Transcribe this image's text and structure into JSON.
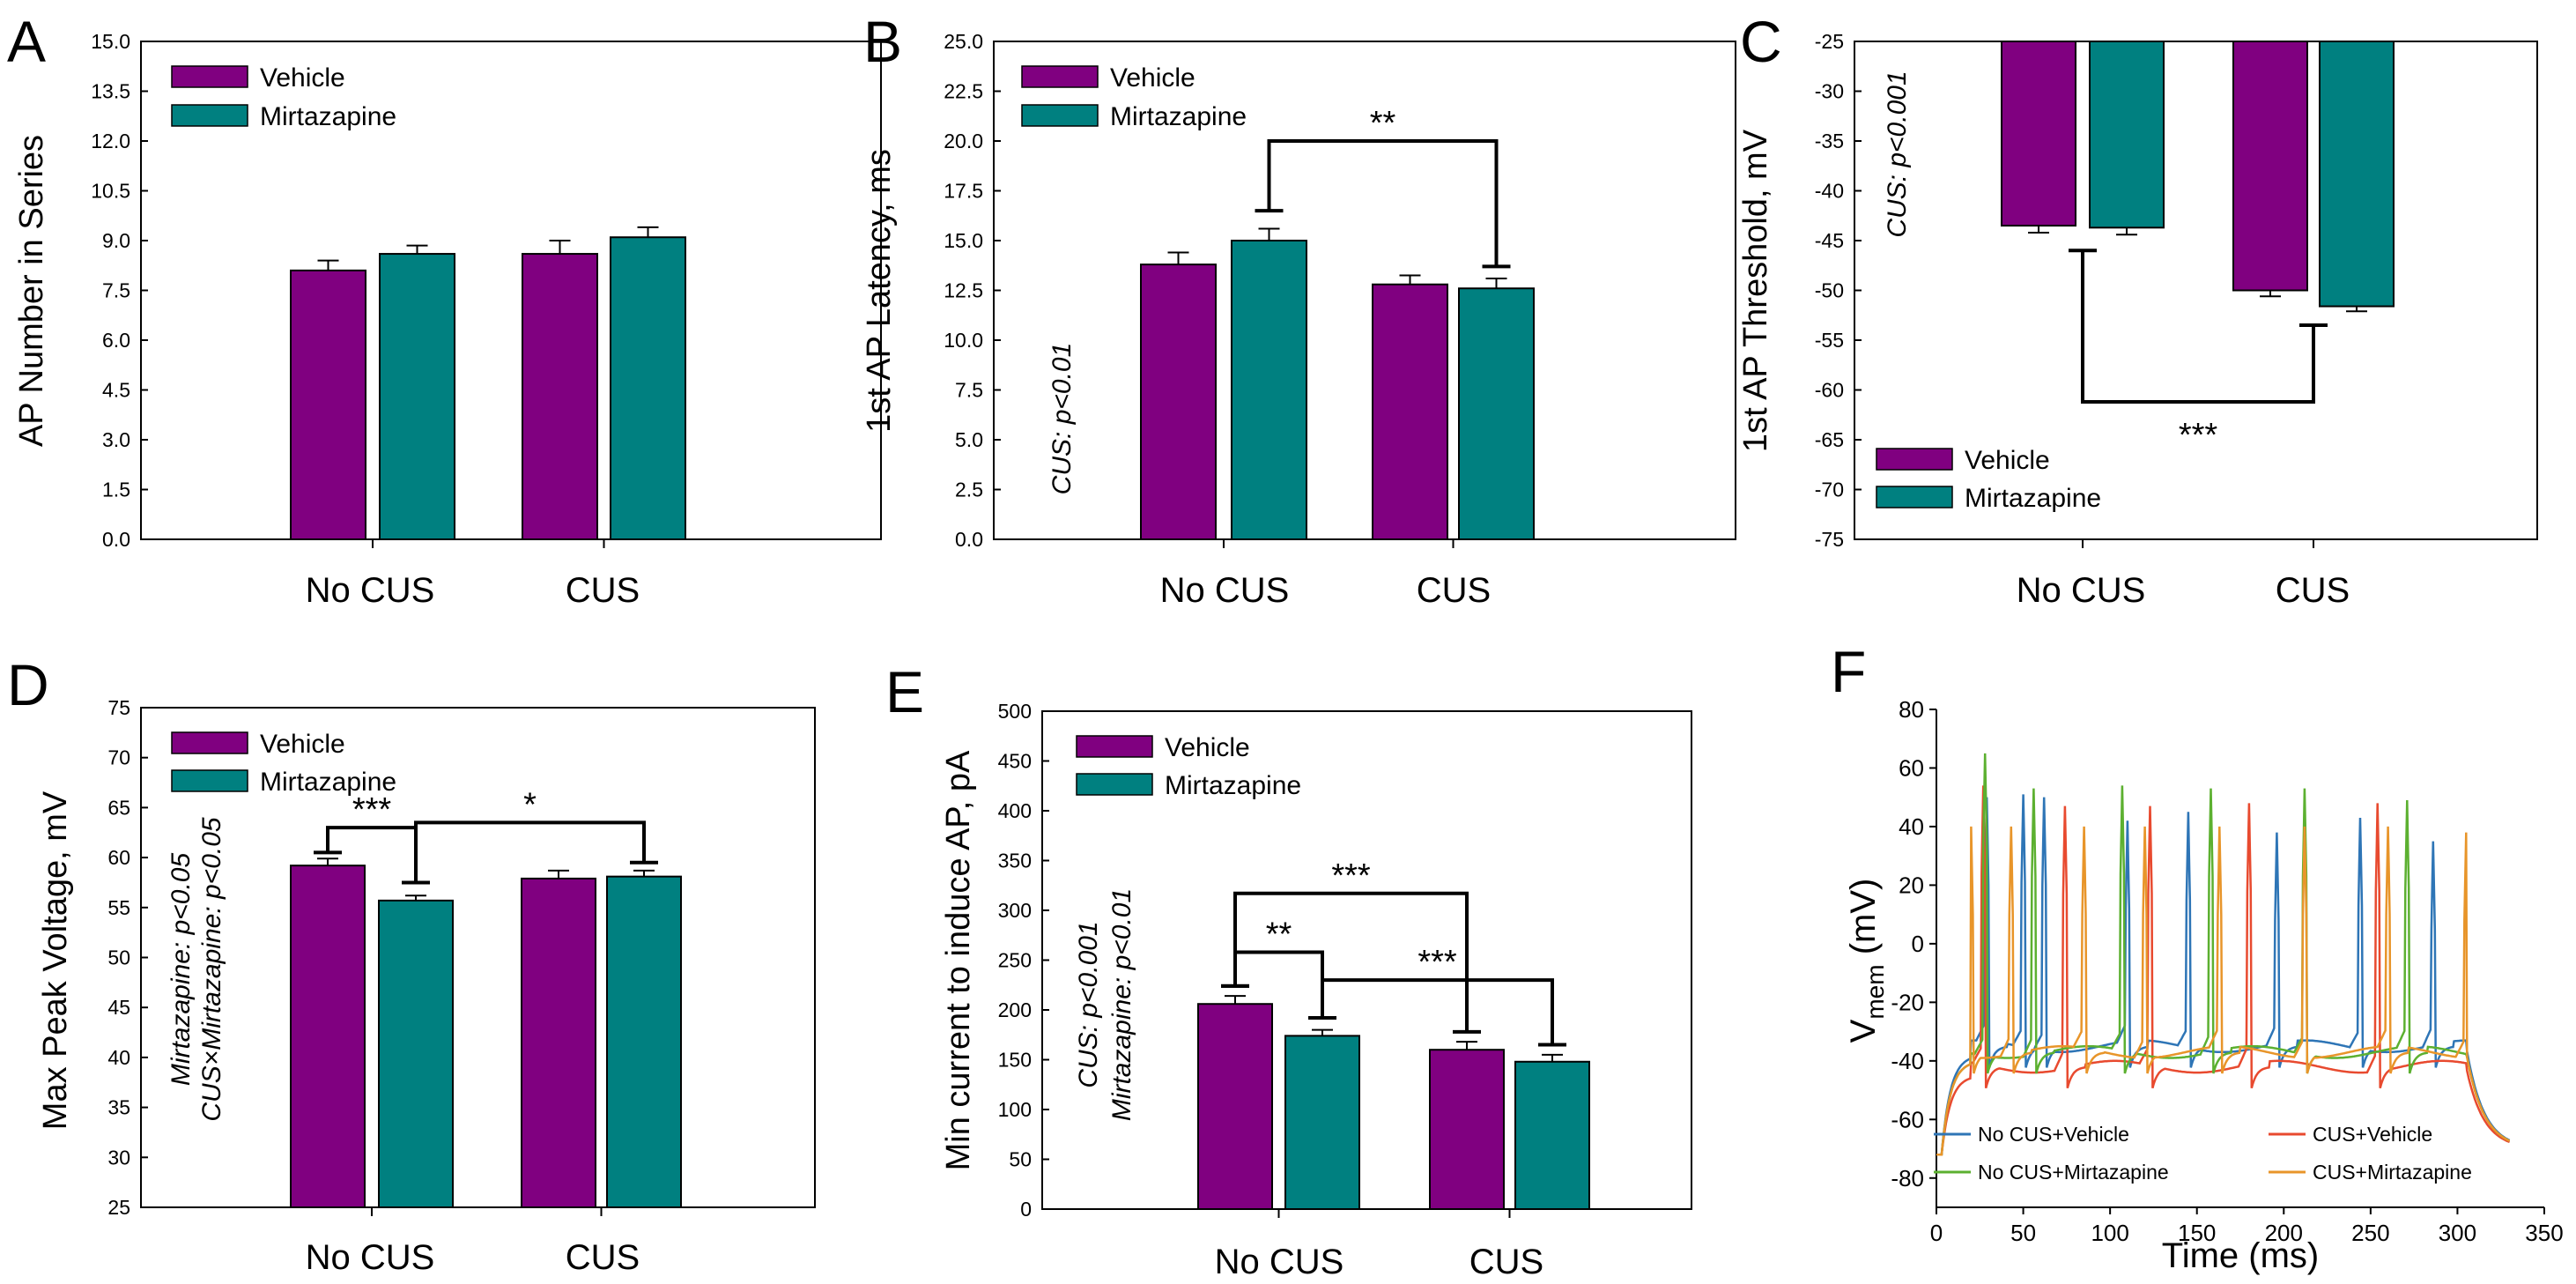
{
  "figure": {
    "colors": {
      "vehicle": "#800080",
      "mirtazapine": "#008080",
      "axis": "#000000"
    },
    "legend": [
      "Vehicle",
      "Mirtazapine"
    ]
  },
  "chart_data": [
    {
      "panel": "A",
      "type": "bar",
      "ylabel": "AP Number in Series",
      "ylim": [
        0,
        15
      ],
      "yticks": [
        "0.0",
        "1.5",
        "3.0",
        "4.5",
        "6.0",
        "7.5",
        "9.0",
        "10.5",
        "12.0",
        "13.5",
        "15.0"
      ],
      "categories": [
        "No CUS",
        "CUS"
      ],
      "series": [
        {
          "name": "Vehicle",
          "values": [
            8.1,
            8.6
          ],
          "errors": [
            0.3,
            0.4
          ]
        },
        {
          "name": "Mirtazapine",
          "values": [
            8.6,
            9.1
          ],
          "errors": [
            0.25,
            0.3
          ]
        }
      ],
      "legend_position": "top-left",
      "annotations": [],
      "significance": []
    },
    {
      "panel": "B",
      "type": "bar",
      "ylabel": "1st AP Latency, ms",
      "ylim": [
        0,
        25
      ],
      "yticks": [
        "0.0",
        "2.5",
        "5.0",
        "7.5",
        "10.0",
        "12.5",
        "15.0",
        "17.5",
        "20.0",
        "22.5",
        "25.0"
      ],
      "categories": [
        "No CUS",
        "CUS"
      ],
      "series": [
        {
          "name": "Vehicle",
          "values": [
            13.8,
            12.8
          ],
          "errors": [
            0.6,
            0.45
          ]
        },
        {
          "name": "Mirtazapine",
          "values": [
            15.0,
            12.6
          ],
          "errors": [
            0.6,
            0.5
          ]
        }
      ],
      "legend_position": "top-left",
      "annotations": [
        "CUS: p<0.01"
      ],
      "significance": [
        {
          "from": [
            0,
            1
          ],
          "to": [
            1,
            1
          ],
          "y": 20.0,
          "legs": [
            16.5,
            13.7
          ],
          "label": "**"
        }
      ]
    },
    {
      "panel": "C",
      "type": "bar",
      "ylabel": "1st AP Threshold, mV",
      "ylim": [
        -75,
        -25
      ],
      "yticks": [
        "-75",
        "-70",
        "-65",
        "-60",
        "-55",
        "-50",
        "-45",
        "-40",
        "-35",
        "-30",
        "-25"
      ],
      "categories": [
        "No CUS",
        "CUS"
      ],
      "series": [
        {
          "name": "Vehicle",
          "values": [
            -43.5,
            -50.0
          ],
          "errors": [
            0.7,
            0.6
          ]
        },
        {
          "name": "Mirtazapine",
          "values": [
            -43.7,
            -51.6
          ],
          "errors": [
            0.7,
            0.5
          ]
        }
      ],
      "legend_position": "bottom-left",
      "annotations": [
        "CUS: p<0.001"
      ],
      "significance": [
        {
          "from": "No CUS",
          "to": "CUS",
          "y": -61.2,
          "legs": [
            -46.0,
            -53.5
          ],
          "label": "***"
        }
      ]
    },
    {
      "panel": "D",
      "type": "bar",
      "ylabel": "Max Peak Voltage, mV",
      "ylim": [
        25,
        75
      ],
      "yticks": [
        "25",
        "30",
        "35",
        "40",
        "45",
        "50",
        "55",
        "60",
        "65",
        "70",
        "75"
      ],
      "categories": [
        "No CUS",
        "CUS"
      ],
      "series": [
        {
          "name": "Vehicle",
          "values": [
            59.2,
            57.9
          ],
          "errors": [
            0.7,
            0.8
          ]
        },
        {
          "name": "Mirtazapine",
          "values": [
            55.7,
            58.1
          ],
          "errors": [
            0.5,
            0.6
          ]
        }
      ],
      "legend_position": "top-left",
      "annotations": [
        "Mirtazapine: p<0.05",
        "CUS×Mirtazapine: p<0.05"
      ],
      "significance": [
        {
          "from": [
            0,
            0
          ],
          "to": [
            0,
            1
          ],
          "y": 63.0,
          "legs": [
            60.5,
            57.5
          ],
          "label": "***"
        },
        {
          "from": [
            0,
            1
          ],
          "to": [
            1,
            1
          ],
          "y": 63.5,
          "legs": [
            57.5,
            59.5
          ],
          "label": "*"
        }
      ]
    },
    {
      "panel": "E",
      "type": "bar",
      "ylabel": "Min current to induce AP, pA",
      "ylim": [
        0,
        500
      ],
      "yticks": [
        "0",
        "50",
        "100",
        "150",
        "200",
        "250",
        "300",
        "350",
        "400",
        "450",
        "500"
      ],
      "categories": [
        "No CUS",
        "CUS"
      ],
      "series": [
        {
          "name": "Vehicle",
          "values": [
            206,
            160
          ],
          "errors": [
            8,
            8
          ]
        },
        {
          "name": "Mirtazapine",
          "values": [
            174,
            148
          ],
          "errors": [
            6,
            7
          ]
        }
      ],
      "legend_position": "top-left",
      "annotations": [
        "CUS: p<0.001",
        "Mirtazapine: p<0.01"
      ],
      "significance": [
        {
          "from": [
            0,
            0
          ],
          "to": [
            0,
            1
          ],
          "y": 258,
          "legs": [
            224,
            192
          ],
          "label": "**"
        },
        {
          "from": [
            0,
            0
          ],
          "to": [
            1,
            0
          ],
          "y": 317,
          "legs": [
            224,
            178
          ],
          "label": "***"
        },
        {
          "from": [
            0,
            1
          ],
          "to": [
            1,
            1
          ],
          "y": 230,
          "legs": [
            192,
            165
          ],
          "label": "***"
        }
      ]
    },
    {
      "panel": "F",
      "type": "line",
      "xlabel": "Time (ms)",
      "ylabel": "V",
      "ylabel_sub": "mem",
      "ylabel_unit": " (mV)",
      "xlim": [
        0,
        350
      ],
      "ylim": [
        -90,
        80
      ],
      "xticks": [
        "0",
        "50",
        "100",
        "150",
        "200",
        "250",
        "300",
        "350"
      ],
      "yticks": [
        "-80",
        "-60",
        "-40",
        "-20",
        "0",
        "20",
        "40",
        "60",
        "80"
      ],
      "series": [
        {
          "name": "No CUS+Vehicle",
          "color": "#2e75b6",
          "rest": -35,
          "spikes": [
            29,
            50,
            62,
            110,
            145,
            196,
            244,
            286
          ],
          "peaks": [
            50,
            51,
            50,
            42,
            45,
            38,
            43,
            35
          ]
        },
        {
          "name": "CUS+Vehicle",
          "color": "#e84a2f",
          "rest": -42,
          "spikes": [
            27,
            74,
            123,
            180,
            254
          ],
          "peaks": [
            54,
            47,
            47,
            48,
            48
          ]
        },
        {
          "name": "No CUS+Mirtazapine",
          "color": "#5cb030",
          "rest": -37,
          "spikes": [
            28,
            56,
            107,
            158,
            212,
            271
          ],
          "peaks": [
            65,
            53,
            54,
            53,
            53,
            49
          ]
        },
        {
          "name": "CUS+Mirtazapine",
          "color": "#e8952a",
          "rest": -37,
          "spikes": [
            20,
            43,
            85,
            120,
            163,
            212,
            260,
            305
          ],
          "peaks": [
            40,
            40,
            40,
            40,
            40,
            40,
            40,
            38
          ]
        }
      ],
      "legend_position": "bottom"
    }
  ]
}
